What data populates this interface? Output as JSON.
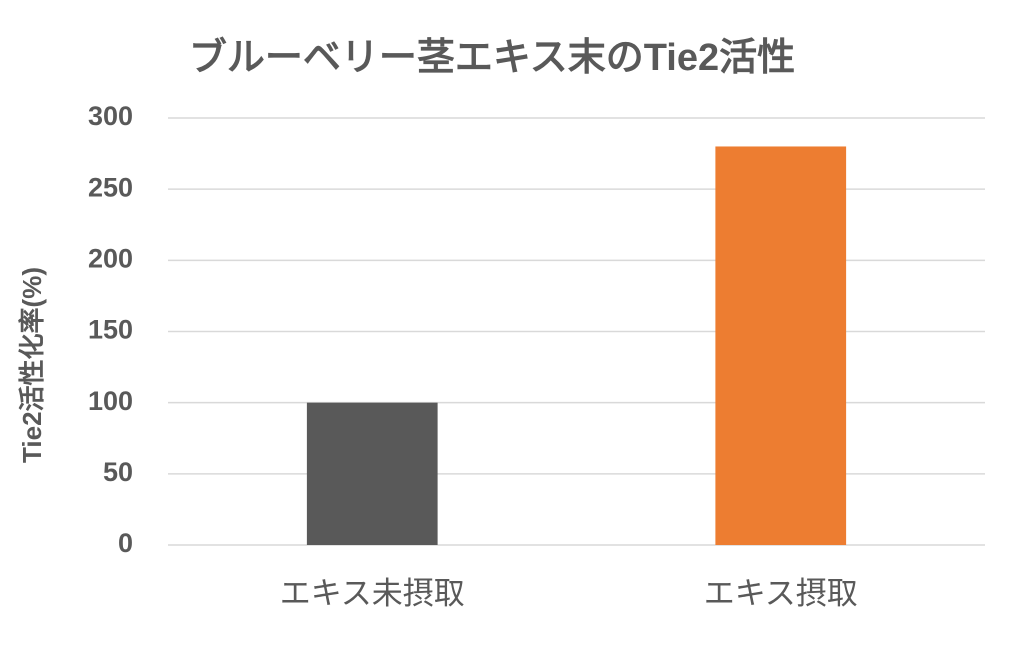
{
  "chart_data": {
    "type": "bar",
    "title": "ブルーベリー茎エキス末のTie2活性",
    "y_label": "Tie2活性化率(%)",
    "categories": [
      "エキス未摂取",
      "エキス摂取"
    ],
    "values": [
      100,
      280
    ],
    "colors": [
      "#595959",
      "#ed7d31"
    ],
    "ylim": [
      0,
      300
    ],
    "yticks": [
      0,
      50,
      100,
      150,
      200,
      250,
      300
    ],
    "grid": true
  }
}
